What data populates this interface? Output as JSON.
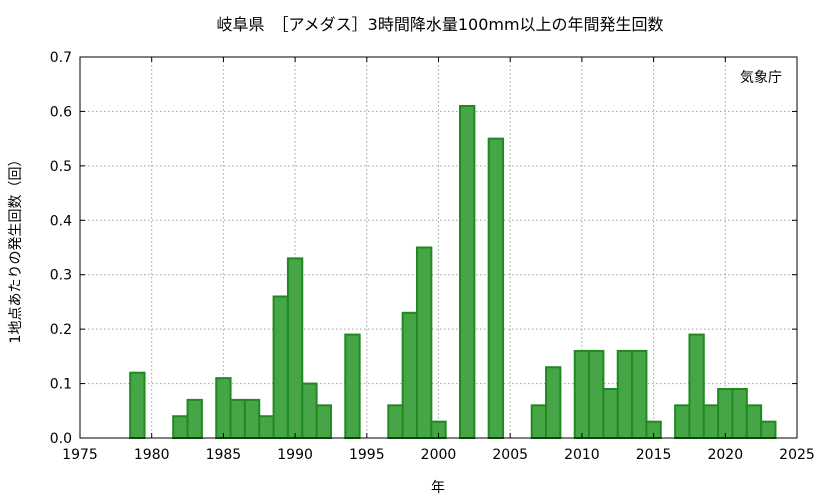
{
  "chart_data": {
    "type": "bar",
    "title": "岐阜県　［アメダス］3時間降水量100mm以上の年間発生回数",
    "xlabel": "年",
    "ylabel": "1地点あたりの発生回数（回）",
    "credit": "気象庁",
    "xlim": [
      1975,
      2025
    ],
    "ylim": [
      0,
      0.7
    ],
    "xticks": [
      1975,
      1980,
      1985,
      1990,
      1995,
      2000,
      2005,
      2010,
      2015,
      2020,
      2025
    ],
    "yticks": [
      "0.0",
      "0.1",
      "0.2",
      "0.3",
      "0.4",
      "0.5",
      "0.6",
      "0.7"
    ],
    "grid": true,
    "bar_color": "#46a546",
    "bar_edge_color": "#1f8a1f",
    "x": [
      1979,
      1982,
      1983,
      1985,
      1986,
      1987,
      1988,
      1989,
      1990,
      1991,
      1992,
      1994,
      1997,
      1998,
      1999,
      2000,
      2002,
      2004,
      2007,
      2008,
      2010,
      2011,
      2012,
      2013,
      2014,
      2015,
      2017,
      2018,
      2019,
      2020,
      2021,
      2022,
      2023
    ],
    "values": [
      0.12,
      0.04,
      0.07,
      0.11,
      0.07,
      0.07,
      0.04,
      0.26,
      0.33,
      0.1,
      0.06,
      0.19,
      0.06,
      0.23,
      0.35,
      0.03,
      0.61,
      0.55,
      0.06,
      0.13,
      0.16,
      0.16,
      0.09,
      0.16,
      0.16,
      0.03,
      0.06,
      0.19,
      0.06,
      0.09,
      0.09,
      0.06,
      0.03
    ]
  }
}
